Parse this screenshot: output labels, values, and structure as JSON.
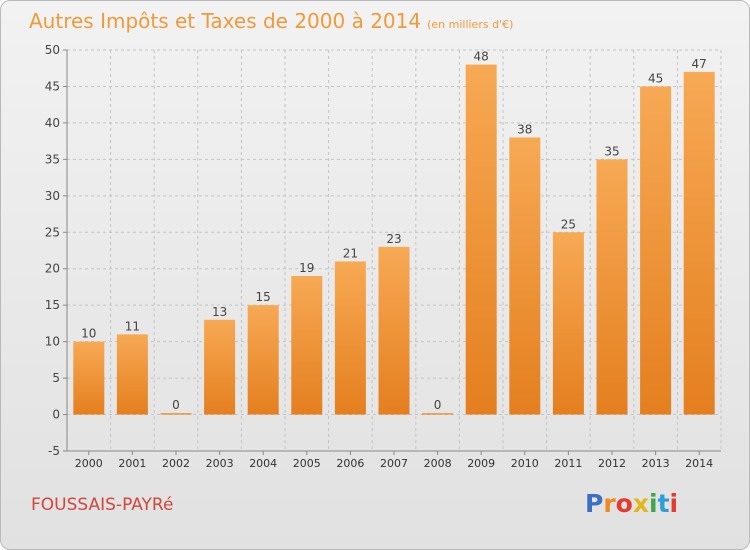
{
  "title": "Autres Impôts et Taxes de 2000 à 2014",
  "unit": "(en milliers d'€)",
  "place": "FOUSSAIS-PAYRé",
  "logo": {
    "text": "Proxiti",
    "colors": [
      "#3b6fc4",
      "#ef8a20",
      "#e63a2e",
      "#e3b71a",
      "#3fa64b",
      "#2ea0d8",
      "#e63a2e"
    ]
  },
  "colors": {
    "bar_light": "#f7a954",
    "bar_dark": "#e47f1f",
    "title": "#f09a3a",
    "place": "#d2453a"
  },
  "chart_data": {
    "type": "bar",
    "categories": [
      "2000",
      "2001",
      "2002",
      "2003",
      "2004",
      "2005",
      "2006",
      "2007",
      "2008",
      "2009",
      "2010",
      "2011",
      "2012",
      "2013",
      "2014"
    ],
    "values": [
      10,
      11,
      0,
      13,
      15,
      19,
      21,
      23,
      0,
      48,
      38,
      25,
      35,
      45,
      47
    ],
    "ylim": [
      -5,
      50
    ],
    "yticks": [
      -5,
      0,
      5,
      10,
      15,
      20,
      25,
      30,
      35,
      40,
      45,
      50
    ],
    "grid": true
  }
}
